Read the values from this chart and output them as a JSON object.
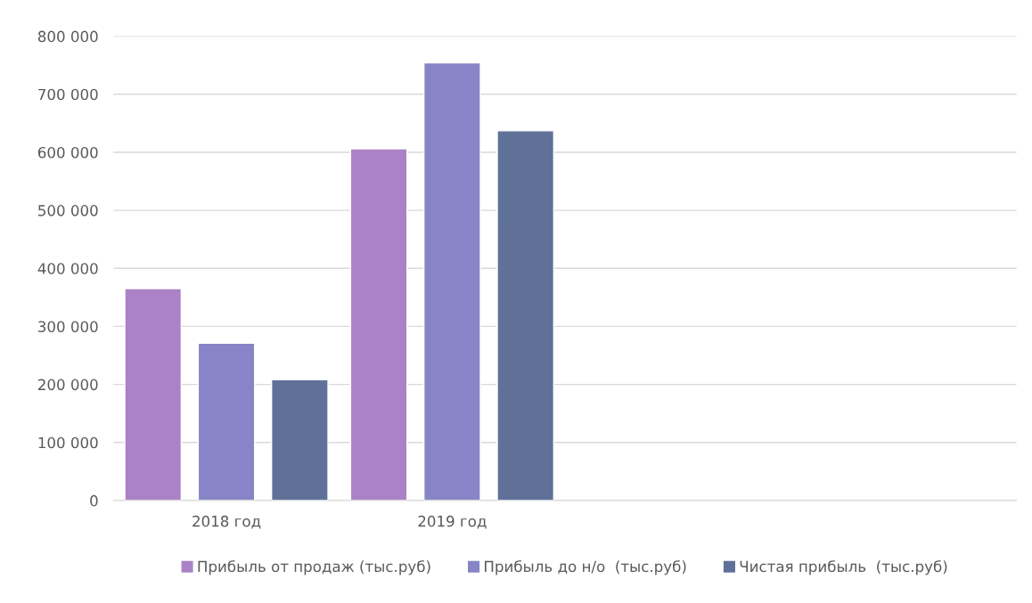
{
  "chart_data": {
    "type": "bar",
    "categories": [
      "2018 год",
      "2019 год",
      null,
      null
    ],
    "series": [
      {
        "name": "Прибыль от продаж (тыс.руб)",
        "color": "#ab82c5",
        "values": [
          365000,
          606000,
          null,
          null
        ]
      },
      {
        "name": "Прибыль до н/о  (тыс.руб)",
        "color": "#8784c7",
        "values": [
          271000,
          754000,
          null,
          null
        ]
      },
      {
        "name": "Чистая прибыль  (тыс.руб)",
        "color": "#5f7198",
        "values": [
          208000,
          637000,
          null,
          null
        ]
      }
    ],
    "ylim": [
      0,
      800000
    ],
    "yticks": [
      {
        "value": 0,
        "label": "0"
      },
      {
        "value": 100000,
        "label": "100 000"
      },
      {
        "value": 200000,
        "label": "200 000"
      },
      {
        "value": 300000,
        "label": "300 000"
      },
      {
        "value": 400000,
        "label": "400 000"
      },
      {
        "value": 500000,
        "label": "500 000"
      },
      {
        "value": 600000,
        "label": "600 000"
      },
      {
        "value": 700000,
        "label": "700 000"
      },
      {
        "value": 800000,
        "label": "800 000"
      }
    ],
    "grid": "y",
    "legend": "bottom"
  }
}
